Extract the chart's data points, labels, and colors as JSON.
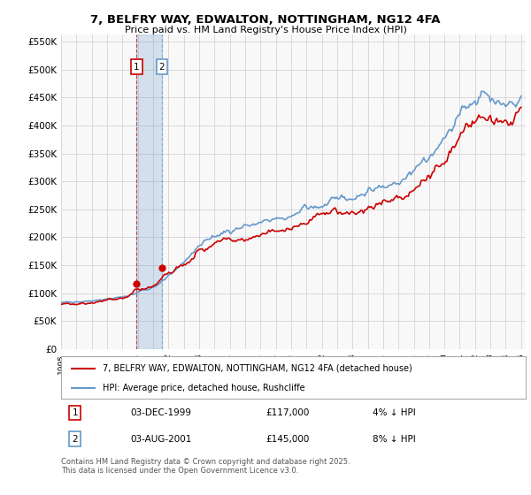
{
  "title": "7, BELFRY WAY, EDWALTON, NOTTINGHAM, NG12 4FA",
  "subtitle": "Price paid vs. HM Land Registry's House Price Index (HPI)",
  "legend_label_red": "7, BELFRY WAY, EDWALTON, NOTTINGHAM, NG12 4FA (detached house)",
  "legend_label_blue": "HPI: Average price, detached house, Rushcliffe",
  "transaction1_date": "03-DEC-1999",
  "transaction1_price": "£117,000",
  "transaction1_note": "4% ↓ HPI",
  "transaction2_date": "03-AUG-2001",
  "transaction2_price": "£145,000",
  "transaction2_note": "8% ↓ HPI",
  "footer": "Contains HM Land Registry data © Crown copyright and database right 2025.\nThis data is licensed under the Open Government Licence v3.0.",
  "red_color": "#cc0000",
  "blue_color": "#6699cc",
  "shade_color": "#ddeeff",
  "background_color": "#ffffff",
  "grid_color": "#cccccc",
  "ylim": [
    0,
    562500
  ],
  "yticks": [
    0,
    50000,
    100000,
    150000,
    200000,
    250000,
    300000,
    350000,
    400000,
    450000,
    500000,
    550000
  ],
  "x_start_year": 1995,
  "x_end_year": 2025,
  "transaction1_year": 1999.92,
  "transaction2_year": 2001.58,
  "transaction1_price_val": 117000,
  "transaction2_price_val": 145000
}
